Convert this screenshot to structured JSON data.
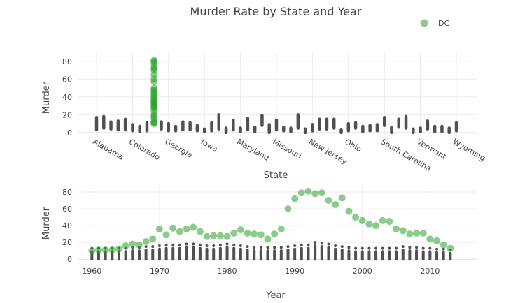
{
  "chart_data": [
    {
      "type": "scatter",
      "panel": "top",
      "title": "Murder Rate by State and Year",
      "xlabel": "State",
      "ylabel": "Murder",
      "x_tick_labels": [
        "Alabama",
        "Colorado",
        "Georgia",
        "Iowa",
        "Maryland",
        "Missouri",
        "New Jersey",
        "Ohio",
        "South Carolina",
        "Vermont",
        "Wyoming"
      ],
      "y_ticks": [
        0,
        20,
        40,
        60,
        80
      ],
      "ylim": [
        -4,
        90
      ],
      "n_states": 51,
      "highlight_index": 8,
      "highlight_name": "DC",
      "background_ranges": [
        [
          3,
          17
        ],
        [
          5,
          18
        ],
        [
          4,
          12
        ],
        [
          3,
          13
        ],
        [
          3,
          15
        ],
        [
          2,
          9
        ],
        [
          1,
          7
        ],
        [
          2,
          11
        ],
        [
          9,
          20
        ],
        [
          4,
          12
        ],
        [
          2,
          10
        ],
        [
          2,
          7
        ],
        [
          3,
          12
        ],
        [
          3,
          11
        ],
        [
          2,
          8
        ],
        [
          1,
          4
        ],
        [
          2,
          11
        ],
        [
          4,
          20
        ],
        [
          0,
          5
        ],
        [
          3,
          14
        ],
        [
          1,
          5
        ],
        [
          3,
          16
        ],
        [
          1,
          6
        ],
        [
          8,
          19
        ],
        [
          0,
          9
        ],
        [
          3,
          14
        ],
        [
          2,
          6
        ],
        [
          1,
          5
        ],
        [
          5,
          20
        ],
        [
          0,
          4
        ],
        [
          2,
          9
        ],
        [
          4,
          15
        ],
        [
          4,
          15
        ],
        [
          5,
          15
        ],
        [
          0,
          3
        ],
        [
          2,
          10
        ],
        [
          5,
          11
        ],
        [
          1,
          7
        ],
        [
          2,
          8
        ],
        [
          2,
          9
        ],
        [
          8,
          17
        ],
        [
          0,
          6
        ],
        [
          6,
          15
        ],
        [
          5,
          18
        ],
        [
          0,
          4
        ],
        [
          1,
          5
        ],
        [
          4,
          13
        ],
        [
          1,
          7
        ],
        [
          1,
          7
        ],
        [
          0,
          5
        ],
        [
          2,
          11
        ]
      ],
      "highlight_points": [
        {
          "x": "DC",
          "y": 10
        },
        {
          "x": "DC",
          "y": 11
        },
        {
          "x": "DC",
          "y": 12
        },
        {
          "x": "DC",
          "y": 16
        },
        {
          "x": "DC",
          "y": 18
        },
        {
          "x": "DC",
          "y": 20
        },
        {
          "x": "DC",
          "y": 24
        },
        {
          "x": "DC",
          "y": 27
        },
        {
          "x": "DC",
          "y": 29
        },
        {
          "x": "DC",
          "y": 30
        },
        {
          "x": "DC",
          "y": 32
        },
        {
          "x": "DC",
          "y": 33
        },
        {
          "x": "DC",
          "y": 35
        },
        {
          "x": "DC",
          "y": 36
        },
        {
          "x": "DC",
          "y": 38
        },
        {
          "x": "DC",
          "y": 40
        },
        {
          "x": "DC",
          "y": 42
        },
        {
          "x": "DC",
          "y": 44
        },
        {
          "x": "DC",
          "y": 46
        },
        {
          "x": "DC",
          "y": 48
        },
        {
          "x": "DC",
          "y": 50
        },
        {
          "x": "DC",
          "y": 57
        },
        {
          "x": "DC",
          "y": 60
        },
        {
          "x": "DC",
          "y": 65
        },
        {
          "x": "DC",
          "y": 70
        },
        {
          "x": "DC",
          "y": 72
        },
        {
          "x": "DC",
          "y": 74
        },
        {
          "x": "DC",
          "y": 78
        },
        {
          "x": "DC",
          "y": 80
        },
        {
          "x": "DC",
          "y": 81
        }
      ]
    },
    {
      "type": "scatter",
      "panel": "bottom",
      "xlabel": "Year",
      "ylabel": "Murder",
      "x_ticks": [
        1960,
        1970,
        1980,
        1990,
        2000,
        2010
      ],
      "y_ticks": [
        0,
        20,
        40,
        60,
        80
      ],
      "xlim": [
        1958,
        2017
      ],
      "ylim": [
        -4,
        90
      ],
      "highlight_name": "DC",
      "highlight_series": [
        {
          "x": 1960,
          "y": 10
        },
        {
          "x": 1961,
          "y": 11
        },
        {
          "x": 1962,
          "y": 11
        },
        {
          "x": 1963,
          "y": 11
        },
        {
          "x": 1964,
          "y": 12
        },
        {
          "x": 1965,
          "y": 16
        },
        {
          "x": 1966,
          "y": 18
        },
        {
          "x": 1967,
          "y": 17
        },
        {
          "x": 1968,
          "y": 21
        },
        {
          "x": 1969,
          "y": 24
        },
        {
          "x": 1970,
          "y": 36
        },
        {
          "x": 1971,
          "y": 29
        },
        {
          "x": 1972,
          "y": 37
        },
        {
          "x": 1973,
          "y": 33
        },
        {
          "x": 1974,
          "y": 36
        },
        {
          "x": 1975,
          "y": 38
        },
        {
          "x": 1976,
          "y": 33
        },
        {
          "x": 1977,
          "y": 27
        },
        {
          "x": 1978,
          "y": 28
        },
        {
          "x": 1979,
          "y": 28
        },
        {
          "x": 1980,
          "y": 27
        },
        {
          "x": 1981,
          "y": 31
        },
        {
          "x": 1982,
          "y": 35
        },
        {
          "x": 1983,
          "y": 31
        },
        {
          "x": 1984,
          "y": 30
        },
        {
          "x": 1985,
          "y": 29
        },
        {
          "x": 1986,
          "y": 24
        },
        {
          "x": 1987,
          "y": 30
        },
        {
          "x": 1988,
          "y": 36
        },
        {
          "x": 1989,
          "y": 60
        },
        {
          "x": 1990,
          "y": 72
        },
        {
          "x": 1991,
          "y": 79
        },
        {
          "x": 1992,
          "y": 81
        },
        {
          "x": 1993,
          "y": 78
        },
        {
          "x": 1994,
          "y": 79
        },
        {
          "x": 1995,
          "y": 70
        },
        {
          "x": 1996,
          "y": 65
        },
        {
          "x": 1997,
          "y": 73
        },
        {
          "x": 1998,
          "y": 57
        },
        {
          "x": 1999,
          "y": 50
        },
        {
          "x": 2000,
          "y": 46
        },
        {
          "x": 2001,
          "y": 42
        },
        {
          "x": 2002,
          "y": 40
        },
        {
          "x": 2003,
          "y": 46
        },
        {
          "x": 2004,
          "y": 45
        },
        {
          "x": 2005,
          "y": 36
        },
        {
          "x": 2006,
          "y": 34
        },
        {
          "x": 2007,
          "y": 30
        },
        {
          "x": 2008,
          "y": 31
        },
        {
          "x": 2009,
          "y": 31
        },
        {
          "x": 2010,
          "y": 24
        },
        {
          "x": 2011,
          "y": 22
        },
        {
          "x": 2012,
          "y": 17
        },
        {
          "x": 2013,
          "y": 13
        }
      ],
      "background_max_by_year": [
        [
          1960,
          13
        ],
        [
          1961,
          13
        ],
        [
          1962,
          13
        ],
        [
          1963,
          13
        ],
        [
          1964,
          13
        ],
        [
          1965,
          13
        ],
        [
          1966,
          14
        ],
        [
          1967,
          14
        ],
        [
          1968,
          15
        ],
        [
          1969,
          15
        ],
        [
          1970,
          16
        ],
        [
          1971,
          17
        ],
        [
          1972,
          17
        ],
        [
          1973,
          17
        ],
        [
          1974,
          18
        ],
        [
          1975,
          18
        ],
        [
          1976,
          17
        ],
        [
          1977,
          16
        ],
        [
          1978,
          16
        ],
        [
          1979,
          17
        ],
        [
          1980,
          18
        ],
        [
          1981,
          17
        ],
        [
          1982,
          16
        ],
        [
          1983,
          15
        ],
        [
          1984,
          14
        ],
        [
          1985,
          14
        ],
        [
          1986,
          14
        ],
        [
          1987,
          14
        ],
        [
          1988,
          14
        ],
        [
          1989,
          15
        ],
        [
          1990,
          16
        ],
        [
          1991,
          17
        ],
        [
          1992,
          17
        ],
        [
          1993,
          20
        ],
        [
          1994,
          19
        ],
        [
          1995,
          18
        ],
        [
          1996,
          16
        ],
        [
          1997,
          15
        ],
        [
          1998,
          14
        ],
        [
          1999,
          13
        ],
        [
          2000,
          13
        ],
        [
          2001,
          13
        ],
        [
          2002,
          13
        ],
        [
          2003,
          13
        ],
        [
          2004,
          13
        ],
        [
          2005,
          13
        ],
        [
          2006,
          15
        ],
        [
          2007,
          14
        ],
        [
          2008,
          14
        ],
        [
          2009,
          13
        ],
        [
          2010,
          13
        ],
        [
          2011,
          12
        ],
        [
          2012,
          12
        ],
        [
          2013,
          11
        ]
      ]
    }
  ],
  "legend": {
    "label": "DC",
    "color": "#2ca02c"
  },
  "colors": {
    "highlight": "#2ca02c",
    "background": "#505050"
  }
}
